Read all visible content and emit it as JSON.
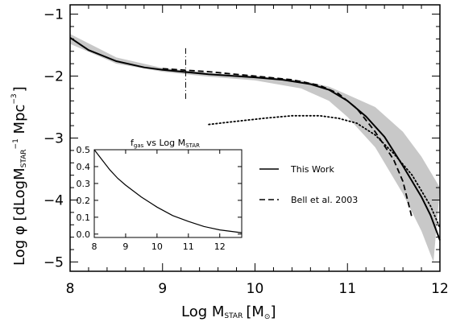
{
  "chart_data": [
    {
      "type": "line",
      "xlabel": "Log M",
      "xlabel_sub": "STAR",
      "xlabel_unit_open": "[M",
      "xlabel_unit_sun": "⊙",
      "xlabel_unit_close": "]",
      "ylabel": "Log φ  [dLogM",
      "ylabel_sub": "STAR",
      "ylabel_rest": " Mpc",
      "ylabel_sup1": "−1",
      "ylabel_sup2": "−3",
      "ylabel_close": "]",
      "xlim": [
        8,
        12
      ],
      "ylim": [
        -5.15,
        -0.85
      ],
      "xticks": [
        "8",
        "9",
        "10",
        "11",
        "12"
      ],
      "yticks": [
        "−1",
        "−2",
        "−3",
        "−4",
        "−5"
      ],
      "vertical_marker": {
        "x": 9.25,
        "y_from": -1.55,
        "y_to": -2.4,
        "style": "dash-dot"
      },
      "shaded_band": {
        "upper": [
          [
            8,
            -1.32
          ],
          [
            8.5,
            -1.7
          ],
          [
            9,
            -1.87
          ],
          [
            9.5,
            -1.95
          ],
          [
            10,
            -2.0
          ],
          [
            10.5,
            -2.07
          ],
          [
            10.8,
            -2.17
          ],
          [
            11,
            -2.3
          ],
          [
            11.3,
            -2.5
          ],
          [
            11.6,
            -2.9
          ],
          [
            11.8,
            -3.3
          ],
          [
            12,
            -3.8
          ]
        ],
        "lower": [
          [
            8,
            -1.48
          ],
          [
            8.5,
            -1.8
          ],
          [
            9,
            -1.93
          ],
          [
            9.5,
            -2.01
          ],
          [
            10,
            -2.07
          ],
          [
            10.5,
            -2.2
          ],
          [
            10.8,
            -2.4
          ],
          [
            11,
            -2.66
          ],
          [
            11.3,
            -3.15
          ],
          [
            11.6,
            -3.9
          ],
          [
            11.8,
            -4.5
          ],
          [
            11.93,
            -5.0
          ]
        ]
      },
      "series": [
        {
          "name": "This Work",
          "style": "solid",
          "points": [
            [
              8,
              -1.38
            ],
            [
              8.2,
              -1.58
            ],
            [
              8.5,
              -1.76
            ],
            [
              8.8,
              -1.86
            ],
            [
              9,
              -1.9
            ],
            [
              9.5,
              -1.97
            ],
            [
              10,
              -2.02
            ],
            [
              10.3,
              -2.06
            ],
            [
              10.6,
              -2.13
            ],
            [
              10.8,
              -2.22
            ],
            [
              11,
              -2.4
            ],
            [
              11.2,
              -2.65
            ],
            [
              11.4,
              -2.98
            ],
            [
              11.6,
              -3.45
            ],
            [
              11.8,
              -3.95
            ],
            [
              11.9,
              -4.25
            ],
            [
              12,
              -4.65
            ]
          ]
        },
        {
          "name": "Bell et al. 2003",
          "style": "dashed",
          "points": [
            [
              9,
              -1.88
            ],
            [
              9.5,
              -1.93
            ],
            [
              10,
              -2.0
            ],
            [
              10.4,
              -2.06
            ],
            [
              10.7,
              -2.15
            ],
            [
              10.9,
              -2.28
            ],
            [
              11.1,
              -2.52
            ],
            [
              11.3,
              -2.9
            ],
            [
              11.5,
              -3.35
            ],
            [
              11.6,
              -3.7
            ],
            [
              11.7,
              -4.3
            ]
          ]
        },
        {
          "style": "dotted",
          "points": [
            [
              9.5,
              -2.78
            ],
            [
              9.8,
              -2.73
            ],
            [
              10.1,
              -2.68
            ],
            [
              10.4,
              -2.64
            ],
            [
              10.7,
              -2.64
            ],
            [
              10.9,
              -2.68
            ],
            [
              11.1,
              -2.76
            ],
            [
              11.3,
              -2.95
            ],
            [
              11.5,
              -3.25
            ],
            [
              11.7,
              -3.6
            ],
            [
              11.9,
              -4.1
            ],
            [
              12,
              -4.45
            ]
          ]
        }
      ],
      "legend": {
        "placement": "right-middle",
        "entries": [
          "This Work",
          "Bell et al. 2003"
        ]
      }
    },
    {
      "type": "line",
      "title_main": "f",
      "title_sub": "gas",
      "title_mid": " vs Log M",
      "title_sub2": "STAR",
      "xlim": [
        8,
        12.7
      ],
      "ylim": [
        -0.02,
        0.5
      ],
      "xticks": [
        "8",
        "9",
        "10",
        "11",
        "12"
      ],
      "yticks": [
        "0.0",
        "0.1",
        "0.2",
        "0.3",
        "0.4",
        "0.5"
      ],
      "series": [
        {
          "style": "solid",
          "points": [
            [
              8,
              0.5
            ],
            [
              8.25,
              0.44
            ],
            [
              8.5,
              0.38
            ],
            [
              8.75,
              0.33
            ],
            [
              9,
              0.29
            ],
            [
              9.5,
              0.22
            ],
            [
              10,
              0.16
            ],
            [
              10.5,
              0.11
            ],
            [
              11,
              0.075
            ],
            [
              11.5,
              0.045
            ],
            [
              12,
              0.025
            ],
            [
              12.7,
              0.008
            ]
          ]
        }
      ]
    }
  ],
  "colors": {
    "line": "#000000",
    "band": "#c8c8c8",
    "background": "#ffffff"
  }
}
